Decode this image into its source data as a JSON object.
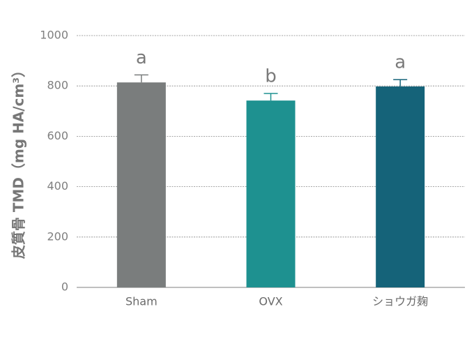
{
  "chart_data": {
    "type": "bar",
    "y_label": "皮質骨 TMD（mg HA/cm³）",
    "categories": [
      "Sham",
      "OVX",
      "ショウガ麹"
    ],
    "values": [
      814,
      742,
      798
    ],
    "errors": [
      30,
      28,
      27
    ],
    "significance": [
      "a",
      "b",
      "a"
    ],
    "colors": [
      "#7a7d7d",
      "#1e9190",
      "#156379"
    ],
    "ylim": [
      0,
      1000
    ],
    "yticks": [
      0,
      200,
      400,
      600,
      800,
      1000
    ],
    "grid": true
  }
}
